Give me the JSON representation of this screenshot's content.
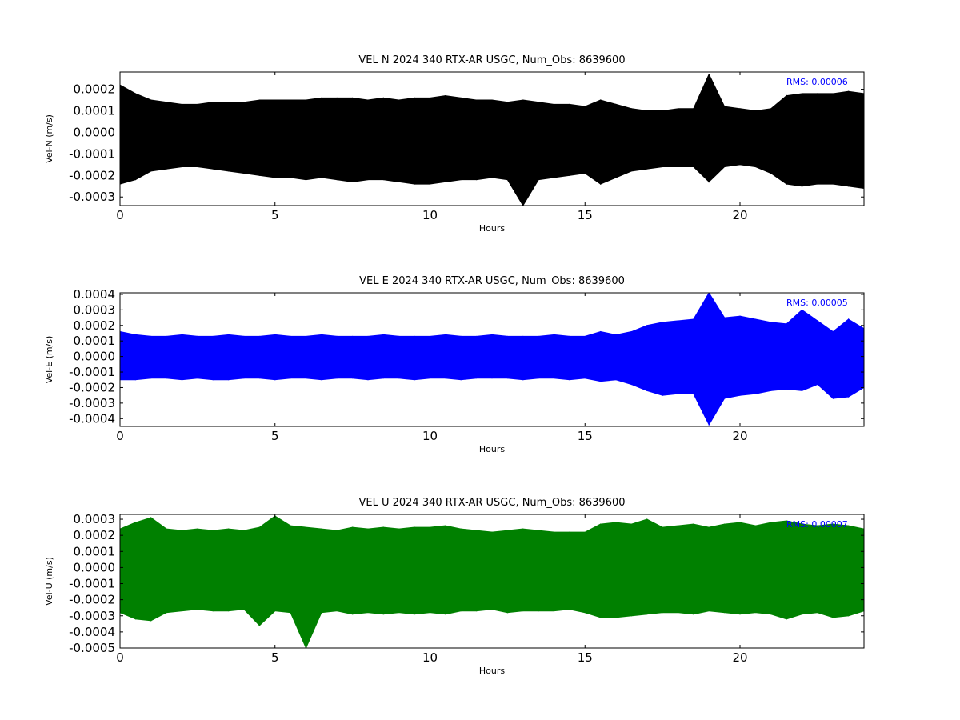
{
  "chart_data": [
    {
      "type": "band",
      "title": "VEL N 2024 340 RTX-AR  USGC, Num_Obs: 8639600",
      "xlabel": "Hours",
      "ylabel": "Vel-N (m/s)",
      "annotation": "RMS:  0.00006",
      "color": "#000000",
      "annotation_color": "#0000ff",
      "xlim": [
        0,
        24
      ],
      "xticks": [
        0,
        5,
        10,
        15,
        20
      ],
      "ylim": [
        -0.00034,
        0.00028
      ],
      "yticks": [
        0.0002,
        0.0001,
        {
          "value": 0,
          "label": "0.0000"
        },
        -0.0001,
        -0.0002,
        -0.0003
      ],
      "x": [
        0,
        0.5,
        1,
        1.5,
        2,
        2.5,
        3,
        3.5,
        4,
        4.5,
        5,
        5.5,
        6,
        6.5,
        7,
        7.5,
        8,
        8.5,
        9,
        9.5,
        10,
        10.5,
        11,
        11.5,
        12,
        12.5,
        13,
        13.5,
        14,
        14.5,
        15,
        15.5,
        16,
        16.5,
        17,
        17.5,
        18,
        18.5,
        19,
        19.5,
        20,
        20.5,
        21,
        21.5,
        22,
        22.5,
        23,
        23.5,
        24
      ],
      "upper": [
        0.00022,
        0.00018,
        0.00015,
        0.00014,
        0.00013,
        0.00013,
        0.00014,
        0.00014,
        0.00014,
        0.00015,
        0.00015,
        0.00015,
        0.00015,
        0.00016,
        0.00016,
        0.00016,
        0.00015,
        0.00016,
        0.00015,
        0.00016,
        0.00016,
        0.00017,
        0.00016,
        0.00015,
        0.00015,
        0.00014,
        0.00015,
        0.00014,
        0.00013,
        0.00013,
        0.00012,
        0.00015,
        0.00013,
        0.00011,
        0.0001,
        0.0001,
        0.00011,
        0.00011,
        0.00027,
        0.00012,
        0.00011,
        0.0001,
        0.00011,
        0.00017,
        0.00018,
        0.00018,
        0.00018,
        0.00019,
        0.00018
      ],
      "lower": [
        -0.00024,
        -0.00022,
        -0.00018,
        -0.00017,
        -0.00016,
        -0.00016,
        -0.00017,
        -0.00018,
        -0.00019,
        -0.0002,
        -0.00021,
        -0.00021,
        -0.00022,
        -0.00021,
        -0.00022,
        -0.00023,
        -0.00022,
        -0.00022,
        -0.00023,
        -0.00024,
        -0.00024,
        -0.00023,
        -0.00022,
        -0.00022,
        -0.00021,
        -0.00022,
        -0.00034,
        -0.00022,
        -0.00021,
        -0.0002,
        -0.00019,
        -0.00024,
        -0.00021,
        -0.00018,
        -0.00017,
        -0.00016,
        -0.00016,
        -0.00016,
        -0.00023,
        -0.00016,
        -0.00015,
        -0.00016,
        -0.00019,
        -0.00024,
        -0.00025,
        -0.00024,
        -0.00024,
        -0.00025,
        -0.00026
      ]
    },
    {
      "type": "band",
      "title": "VEL E 2024 340 RTX-AR  USGC, Num_Obs: 8639600",
      "xlabel": "Hours",
      "ylabel": "Vel-E (m/s)",
      "annotation": "RMS:  0.00005",
      "color": "#0000ff",
      "annotation_color": "#0000ff",
      "xlim": [
        0,
        24
      ],
      "xticks": [
        0,
        5,
        10,
        15,
        20
      ],
      "ylim": [
        -0.00045,
        0.00041
      ],
      "yticks": [
        0.0004,
        0.0003,
        0.0002,
        0.0001,
        {
          "value": 0,
          "label": "0.0000"
        },
        -0.0001,
        -0.0002,
        -0.0003,
        -0.0004
      ],
      "x": [
        0,
        0.5,
        1,
        1.5,
        2,
        2.5,
        3,
        3.5,
        4,
        4.5,
        5,
        5.5,
        6,
        6.5,
        7,
        7.5,
        8,
        8.5,
        9,
        9.5,
        10,
        10.5,
        11,
        11.5,
        12,
        12.5,
        13,
        13.5,
        14,
        14.5,
        15,
        15.5,
        16,
        16.5,
        17,
        17.5,
        18,
        18.5,
        19,
        19.5,
        20,
        20.5,
        21,
        21.5,
        22,
        22.5,
        23,
        23.5,
        24
      ],
      "upper": [
        0.00016,
        0.00014,
        0.00013,
        0.00013,
        0.00014,
        0.00013,
        0.00013,
        0.00014,
        0.00013,
        0.00013,
        0.00014,
        0.00013,
        0.00013,
        0.00014,
        0.00013,
        0.00013,
        0.00013,
        0.00014,
        0.00013,
        0.00013,
        0.00013,
        0.00014,
        0.00013,
        0.00013,
        0.00014,
        0.00013,
        0.00013,
        0.00013,
        0.00014,
        0.00013,
        0.00013,
        0.00016,
        0.00014,
        0.00016,
        0.0002,
        0.00022,
        0.00023,
        0.00024,
        0.00041,
        0.00025,
        0.00026,
        0.00024,
        0.00022,
        0.00021,
        0.0003,
        0.00023,
        0.00016,
        0.00024,
        0.00018
      ],
      "lower": [
        -0.00015,
        -0.00015,
        -0.00014,
        -0.00014,
        -0.00015,
        -0.00014,
        -0.00015,
        -0.00015,
        -0.00014,
        -0.00014,
        -0.00015,
        -0.00014,
        -0.00014,
        -0.00015,
        -0.00014,
        -0.00014,
        -0.00015,
        -0.00014,
        -0.00014,
        -0.00015,
        -0.00014,
        -0.00014,
        -0.00015,
        -0.00014,
        -0.00014,
        -0.00014,
        -0.00015,
        -0.00014,
        -0.00014,
        -0.00015,
        -0.00014,
        -0.00016,
        -0.00015,
        -0.00018,
        -0.00022,
        -0.00025,
        -0.00024,
        -0.00024,
        -0.00044,
        -0.00027,
        -0.00025,
        -0.00024,
        -0.00022,
        -0.00021,
        -0.00022,
        -0.00018,
        -0.00027,
        -0.00026,
        -0.0002
      ]
    },
    {
      "type": "band",
      "title": "VEL U 2024 340 RTX-AR  USGC, Num_Obs: 8639600",
      "xlabel": "Hours",
      "ylabel": "Vel-U (m/s)",
      "annotation": "RMS:  0.00007",
      "color": "#008000",
      "annotation_color": "#0000ff",
      "xlim": [
        0,
        24
      ],
      "xticks": [
        0,
        5,
        10,
        15,
        20
      ],
      "ylim": [
        -0.0005,
        0.00033
      ],
      "yticks": [
        0.0003,
        0.0002,
        0.0001,
        {
          "value": 0,
          "label": "0.0000"
        },
        -0.0001,
        -0.0002,
        -0.0003,
        -0.0004,
        -0.0005
      ],
      "x": [
        0,
        0.5,
        1,
        1.5,
        2,
        2.5,
        3,
        3.5,
        4,
        4.5,
        5,
        5.5,
        6,
        6.5,
        7,
        7.5,
        8,
        8.5,
        9,
        9.5,
        10,
        10.5,
        11,
        11.5,
        12,
        12.5,
        13,
        13.5,
        14,
        14.5,
        15,
        15.5,
        16,
        16.5,
        17,
        17.5,
        18,
        18.5,
        19,
        19.5,
        20,
        20.5,
        21,
        21.5,
        22,
        22.5,
        23,
        23.5,
        24
      ],
      "upper": [
        0.00024,
        0.00028,
        0.00031,
        0.00024,
        0.00023,
        0.00024,
        0.00023,
        0.00024,
        0.00023,
        0.00025,
        0.00032,
        0.00026,
        0.00025,
        0.00024,
        0.00023,
        0.00025,
        0.00024,
        0.00025,
        0.00024,
        0.00025,
        0.00025,
        0.00026,
        0.00024,
        0.00023,
        0.00022,
        0.00023,
        0.00024,
        0.00023,
        0.00022,
        0.00022,
        0.00022,
        0.00027,
        0.00028,
        0.00027,
        0.0003,
        0.00025,
        0.00026,
        0.00027,
        0.00025,
        0.00027,
        0.00028,
        0.00026,
        0.00028,
        0.00029,
        0.00027,
        0.00026,
        0.00027,
        0.00026,
        0.00024
      ],
      "lower": [
        -0.00028,
        -0.00032,
        -0.00033,
        -0.00028,
        -0.00027,
        -0.00026,
        -0.00027,
        -0.00027,
        -0.00026,
        -0.00036,
        -0.00027,
        -0.00028,
        -0.0005,
        -0.00028,
        -0.00027,
        -0.00029,
        -0.00028,
        -0.00029,
        -0.00028,
        -0.00029,
        -0.00028,
        -0.00029,
        -0.00027,
        -0.00027,
        -0.00026,
        -0.00028,
        -0.00027,
        -0.00027,
        -0.00027,
        -0.00026,
        -0.00028,
        -0.00031,
        -0.00031,
        -0.0003,
        -0.00029,
        -0.00028,
        -0.00028,
        -0.00029,
        -0.00027,
        -0.00028,
        -0.00029,
        -0.00028,
        -0.00029,
        -0.00032,
        -0.00029,
        -0.00028,
        -0.00031,
        -0.0003,
        -0.00027
      ]
    }
  ]
}
